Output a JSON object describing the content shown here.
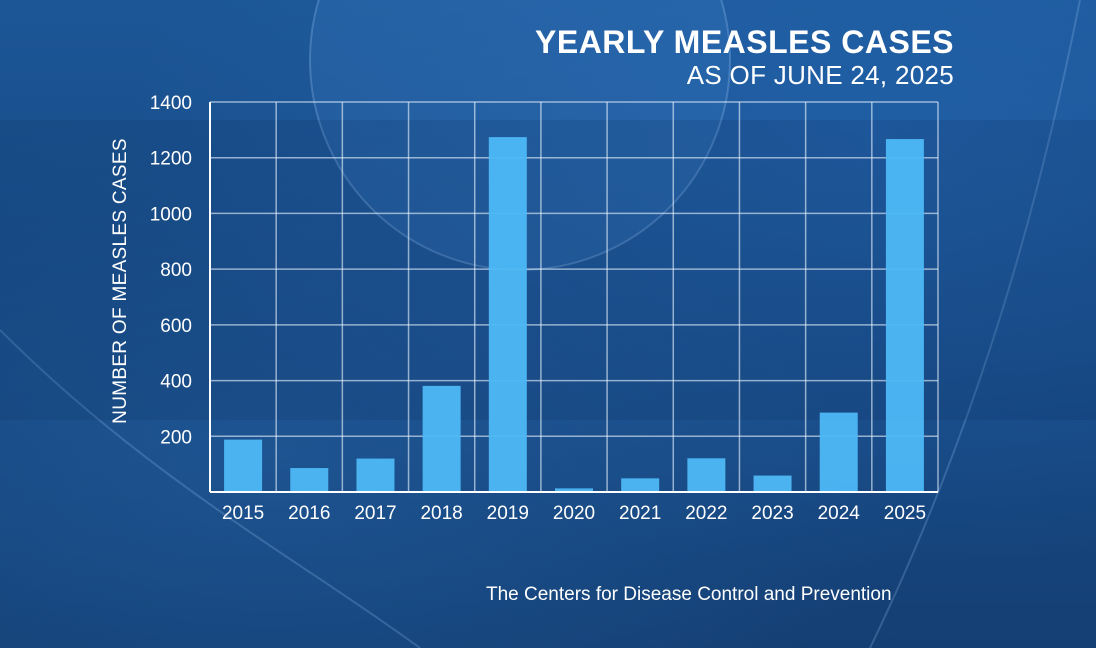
{
  "chart_data": {
    "type": "bar",
    "title": "YEARLY MEASLES CASES",
    "subtitle": "AS OF JUNE 24, 2025",
    "xlabel": "",
    "ylabel": "NUMBER OF MEASLES CASES",
    "categories": [
      "2015",
      "2016",
      "2017",
      "2018",
      "2019",
      "2020",
      "2021",
      "2022",
      "2023",
      "2024",
      "2025"
    ],
    "values": [
      188,
      86,
      120,
      381,
      1274,
      13,
      49,
      121,
      59,
      285,
      1267
    ],
    "ylim": [
      0,
      1400
    ],
    "yticks": [
      200,
      400,
      600,
      800,
      1000,
      1200,
      1400
    ],
    "grid": true,
    "bar_color": "#4db8f5"
  },
  "source": "The Centers for Disease Control and Prevention"
}
